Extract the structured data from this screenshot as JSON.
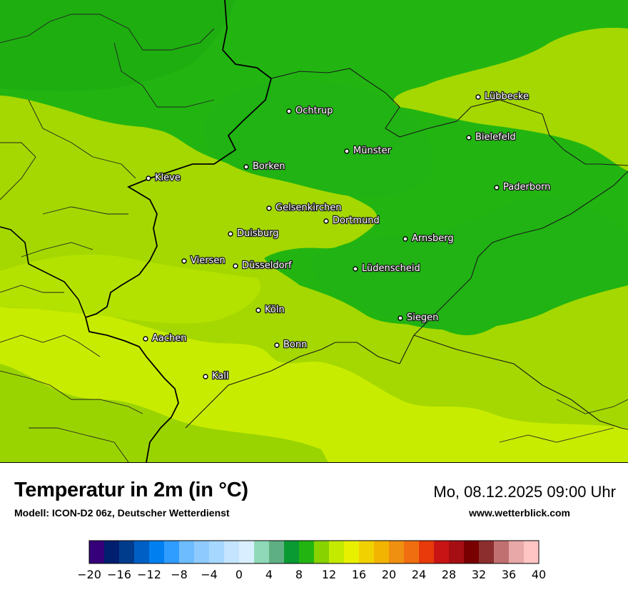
{
  "map": {
    "cities": [
      {
        "name": "Lübbecke"
      },
      {
        "name": "Ochtrup"
      },
      {
        "name": "Bielefeld"
      },
      {
        "name": "Münster"
      },
      {
        "name": "Borken"
      },
      {
        "name": "Kleve"
      },
      {
        "name": "Paderborn"
      },
      {
        "name": "Gelsenkirchen"
      },
      {
        "name": "Dortmund"
      },
      {
        "name": "Duisburg"
      },
      {
        "name": "Arnsberg"
      },
      {
        "name": "Viersen"
      },
      {
        "name": "Düsseldorf"
      },
      {
        "name": "Lüdenscheid"
      },
      {
        "name": "Köln"
      },
      {
        "name": "Siegen"
      },
      {
        "name": "Aachen"
      },
      {
        "name": "Bonn"
      },
      {
        "name": "Kall"
      }
    ]
  },
  "footer": {
    "title": "Temperatur in 2m (in °C)",
    "model": "Modell: ICON-D2 06z, Deutscher Wetterdienst",
    "datetime": "Mo, 08.12.2025 09:00 Uhr",
    "website": "www.wetterblick.com"
  },
  "legend": {
    "colors": [
      "#35007a",
      "#001f6e",
      "#003c8c",
      "#005fc4",
      "#0080f0",
      "#2f9cff",
      "#6cbcff",
      "#8fcaff",
      "#a6d7ff",
      "#c4e4ff",
      "#d9efff",
      "#8fd9b8",
      "#5faf84",
      "#0a9a33",
      "#22b512",
      "#88d200",
      "#c4ea00",
      "#e8f000",
      "#f2d100",
      "#f2b400",
      "#f09010",
      "#f06e10",
      "#e83a0a",
      "#c81414",
      "#a50f14",
      "#780000",
      "#8c2e2e",
      "#c07070",
      "#e8a8a8",
      "#ffc4c4"
    ],
    "ticks": [
      "−20",
      "−16",
      "−12",
      "−8",
      "−4",
      "0",
      "4",
      "8",
      "12",
      "16",
      "20",
      "24",
      "28",
      "32",
      "36",
      "40"
    ]
  }
}
